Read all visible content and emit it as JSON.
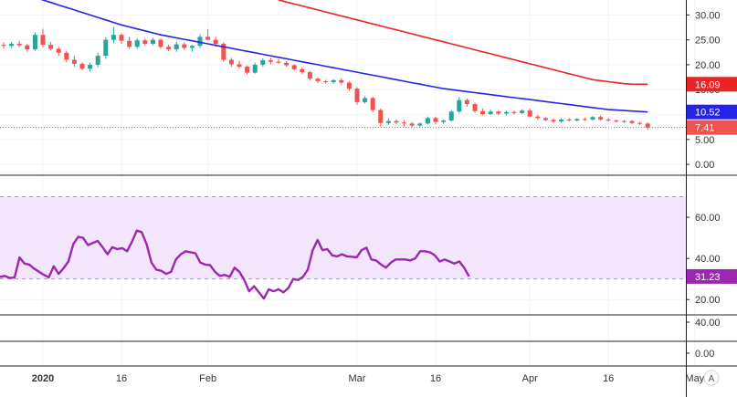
{
  "chart_data": [
    {
      "type": "candlestick",
      "pane": "price",
      "ylim": [
        -2,
        33
      ],
      "yticks": [
        "0.00",
        "5.00",
        "10.00",
        "15.00",
        "20.00",
        "25.00",
        "30.00"
      ],
      "ytick_values": [
        0,
        5,
        10,
        15,
        20,
        25,
        30
      ],
      "colors": {
        "up": "#26a69a",
        "down": "#ef5350",
        "ma_fast": "#2424e8",
        "ma_slow": "#e82424",
        "last": "#ef5350"
      },
      "ohlc": [
        [
          24,
          24.5,
          23.2,
          23.8
        ],
        [
          23.8,
          24.6,
          23.3,
          24.2
        ],
        [
          24.2,
          24.8,
          23.5,
          23.9
        ],
        [
          23.9,
          24.2,
          22.6,
          23.1
        ],
        [
          23.1,
          26.5,
          22.8,
          26.0
        ],
        [
          26.0,
          27.2,
          23.5,
          24.0
        ],
        [
          24.0,
          24.6,
          22.9,
          23.2
        ],
        [
          23.2,
          23.6,
          21.8,
          22.4
        ],
        [
          22.4,
          22.8,
          20.5,
          21.0
        ],
        [
          21.0,
          21.8,
          19.6,
          20.2
        ],
        [
          20.2,
          20.5,
          18.9,
          19.2
        ],
        [
          19.2,
          20.4,
          18.6,
          20.0
        ],
        [
          20.0,
          22.4,
          19.5,
          21.8
        ],
        [
          21.8,
          25.5,
          21.2,
          25.0
        ],
        [
          25.0,
          27.6,
          24.3,
          26.0
        ],
        [
          26.0,
          26.3,
          24.2,
          24.8
        ],
        [
          24.8,
          25.6,
          23.2,
          23.6
        ],
        [
          23.6,
          25.3,
          23.2,
          24.9
        ],
        [
          24.9,
          25.2,
          23.8,
          24.2
        ],
        [
          24.2,
          25.4,
          23.9,
          25.0
        ],
        [
          25.0,
          25.3,
          23.2,
          23.6
        ],
        [
          23.6,
          24.0,
          22.7,
          23.1
        ],
        [
          23.1,
          24.6,
          22.6,
          24.1
        ],
        [
          24.1,
          24.5,
          23.0,
          23.4
        ],
        [
          23.4,
          24.0,
          22.6,
          23.8
        ],
        [
          23.8,
          26.1,
          23.3,
          25.6
        ],
        [
          25.6,
          27.1,
          25.1,
          25.0
        ],
        [
          25.0,
          25.6,
          23.6,
          24.2
        ],
        [
          24.2,
          24.5,
          20.6,
          21.0
        ],
        [
          21.0,
          21.4,
          19.6,
          20.1
        ],
        [
          20.1,
          20.8,
          19.3,
          19.6
        ],
        [
          19.6,
          19.9,
          18.1,
          18.4
        ],
        [
          18.4,
          20.4,
          18.2,
          20.0
        ],
        [
          20.0,
          21.3,
          19.6,
          20.9
        ],
        [
          20.9,
          21.4,
          20.1,
          20.6
        ],
        [
          20.6,
          21.1,
          20.2,
          20.4
        ],
        [
          20.4,
          20.7,
          19.6,
          19.9
        ],
        [
          19.9,
          20.1,
          18.8,
          19.1
        ],
        [
          19.1,
          19.4,
          18.1,
          18.5
        ],
        [
          18.5,
          18.8,
          16.8,
          17.2
        ],
        [
          17.2,
          17.5,
          16.3,
          16.7
        ],
        [
          16.7,
          17.0,
          16.2,
          16.5
        ],
        [
          16.5,
          17.1,
          16.2,
          16.9
        ],
        [
          16.9,
          17.3,
          16.0,
          16.4
        ],
        [
          16.4,
          16.7,
          14.8,
          15.2
        ],
        [
          15.2,
          15.5,
          12.0,
          12.5
        ],
        [
          12.5,
          13.7,
          12.2,
          13.3
        ],
        [
          13.3,
          13.6,
          10.5,
          10.9
        ],
        [
          10.9,
          11.2,
          7.6,
          8.3
        ],
        [
          8.3,
          9.2,
          7.9,
          8.7
        ],
        [
          8.7,
          9.0,
          8.1,
          8.4
        ],
        [
          8.4,
          8.9,
          7.6,
          8.2
        ],
        [
          8.2,
          8.5,
          7.5,
          7.8
        ],
        [
          7.8,
          8.4,
          7.5,
          8.2
        ],
        [
          8.2,
          9.6,
          8.0,
          9.3
        ],
        [
          9.3,
          9.6,
          8.0,
          8.5
        ],
        [
          8.5,
          9.0,
          8.1,
          8.8
        ],
        [
          8.8,
          10.9,
          8.6,
          10.6
        ],
        [
          10.6,
          13.5,
          10.2,
          12.9
        ],
        [
          12.9,
          13.2,
          11.6,
          12.1
        ],
        [
          12.1,
          12.4,
          10.4,
          10.7
        ],
        [
          10.7,
          11.2,
          9.8,
          10.1
        ],
        [
          10.1,
          11.0,
          9.9,
          10.6
        ],
        [
          10.6,
          10.9,
          9.9,
          10.2
        ],
        [
          10.2,
          10.8,
          9.8,
          10.5
        ],
        [
          10.5,
          10.8,
          10.0,
          10.3
        ],
        [
          10.3,
          11.1,
          10.1,
          10.8
        ],
        [
          10.8,
          11.2,
          9.4,
          9.6
        ],
        [
          9.6,
          9.9,
          9.0,
          9.3
        ],
        [
          9.3,
          9.5,
          8.7,
          8.9
        ],
        [
          8.9,
          9.2,
          8.3,
          8.6
        ],
        [
          8.6,
          9.2,
          8.4,
          9.0
        ],
        [
          9.0,
          9.3,
          8.6,
          8.8
        ],
        [
          8.8,
          9.3,
          8.6,
          9.1
        ],
        [
          9.1,
          9.4,
          8.7,
          9.0
        ],
        [
          9.0,
          9.7,
          8.8,
          9.5
        ],
        [
          9.5,
          9.8,
          8.8,
          9.0
        ],
        [
          9.0,
          9.3,
          8.6,
          8.8
        ],
        [
          8.8,
          9.0,
          8.4,
          8.6
        ],
        [
          8.6,
          8.9,
          8.3,
          8.7
        ],
        [
          8.7,
          8.9,
          8.1,
          8.3
        ],
        [
          8.3,
          8.6,
          7.9,
          8.2
        ],
        [
          8.2,
          8.4,
          7.0,
          7.41
        ]
      ],
      "ma_fast": [
        35.5,
        35.0,
        34.5,
        34.0,
        33.5,
        33.0,
        32.5,
        32.0,
        31.5,
        31.0,
        30.5,
        30.0,
        29.5,
        29.0,
        28.5,
        28.0,
        27.6,
        27.2,
        26.8,
        26.4,
        26.0,
        25.7,
        25.4,
        25.1,
        24.8,
        24.5,
        24.2,
        23.9,
        23.6,
        23.3,
        23.0,
        22.7,
        22.4,
        22.1,
        21.8,
        21.5,
        21.2,
        20.9,
        20.6,
        20.3,
        20.0,
        19.7,
        19.4,
        19.1,
        18.8,
        18.5,
        18.2,
        17.9,
        17.6,
        17.3,
        17.0,
        16.7,
        16.4,
        16.1,
        15.8,
        15.5,
        15.2,
        15.0,
        14.8,
        14.6,
        14.4,
        14.2,
        14.0,
        13.8,
        13.6,
        13.4,
        13.2,
        13.0,
        12.8,
        12.6,
        12.4,
        12.2,
        12.0,
        11.8,
        11.6,
        11.4,
        11.2,
        11.0,
        10.9,
        10.8,
        10.7,
        10.6,
        10.52
      ],
      "ma_slow_x": [
        35,
        82
      ],
      "ma_slow": [
        33.0,
        32.6,
        32.2,
        31.8,
        31.4,
        31.0,
        30.6,
        30.2,
        29.8,
        29.4,
        29.0,
        28.6,
        28.2,
        27.8,
        27.4,
        27.0,
        26.6,
        26.2,
        25.8,
        25.4,
        25.0,
        24.6,
        24.2,
        23.8,
        23.4,
        23.0,
        22.6,
        22.2,
        21.8,
        21.4,
        21.0,
        20.6,
        20.2,
        19.8,
        19.4,
        19.0,
        18.6,
        18.2,
        17.8,
        17.4,
        17.0,
        16.8,
        16.6,
        16.4,
        16.2,
        16.1,
        16.09,
        16.09
      ],
      "last_value": 7.41,
      "badges": [
        {
          "label": "16.09",
          "value": 16.09,
          "color": "#e82424"
        },
        {
          "label": "10.52",
          "value": 10.52,
          "color": "#2424e8"
        },
        {
          "label": "7.41",
          "value": 7.41,
          "color": "#ef5350"
        }
      ]
    },
    {
      "type": "line",
      "pane": "rsi",
      "ylim": [
        13,
        80
      ],
      "yticks": [
        "20.00",
        "40.00",
        "60.00"
      ],
      "ytick_values": [
        20,
        40,
        60
      ],
      "band": [
        30,
        70
      ],
      "colors": {
        "line": "#9c27b0",
        "band": "#f3e5fb"
      },
      "values": [
        31,
        31.5,
        30.5,
        30.8,
        40.5,
        37.5,
        37,
        35,
        33.5,
        32,
        30.8,
        36.2,
        32.5,
        35.2,
        38.5,
        47,
        50.5,
        50,
        46.5,
        47.5,
        48.5,
        45.5,
        42,
        45.5,
        44.5,
        45,
        43.5,
        48,
        53.5,
        52.8,
        47,
        38,
        34.5,
        34,
        32.5,
        33.5,
        39.5,
        42,
        43.5,
        43,
        42.5,
        38,
        37,
        36.8,
        33.5,
        31.5,
        32,
        31,
        35.5,
        33.5,
        29.5,
        24,
        26.5,
        23.5,
        20.5,
        25,
        24,
        25,
        23.5,
        25.5,
        30,
        29.5,
        31,
        34.5,
        44,
        49,
        44,
        44.5,
        41.5,
        41,
        42,
        41,
        40.8,
        40.5,
        44,
        45.2,
        39.5,
        39,
        37,
        35.5,
        38,
        39.5,
        39.5,
        39.5,
        39,
        40,
        43.5,
        43.5,
        43,
        41.5,
        38.5,
        39.5,
        38.5,
        37.5,
        38.5,
        35.5,
        31.23
      ],
      "last_value": "31.23"
    },
    {
      "type": "line",
      "pane": "volume",
      "yticks": [
        "40.00"
      ],
      "values": []
    },
    {
      "type": "line",
      "pane": "bottom",
      "yticks": [
        "0.00"
      ],
      "values": []
    }
  ],
  "x_axis": {
    "labels": [
      {
        "text": "2020",
        "bold": true
      },
      {
        "text": "16",
        "bold": false
      },
      {
        "text": "Feb",
        "bold": false
      },
      {
        "text": "Mar",
        "bold": false
      },
      {
        "text": "16",
        "bold": false
      },
      {
        "text": "Apr",
        "bold": false
      },
      {
        "text": "16",
        "bold": false
      },
      {
        "text": "May",
        "bold": false
      }
    ],
    "label_index": [
      5,
      15,
      26,
      45,
      55,
      67,
      77,
      88
    ]
  },
  "ui": {
    "scale_button_label": "A",
    "grid_color": "#f0f3fa",
    "axis_border": "#222222"
  }
}
